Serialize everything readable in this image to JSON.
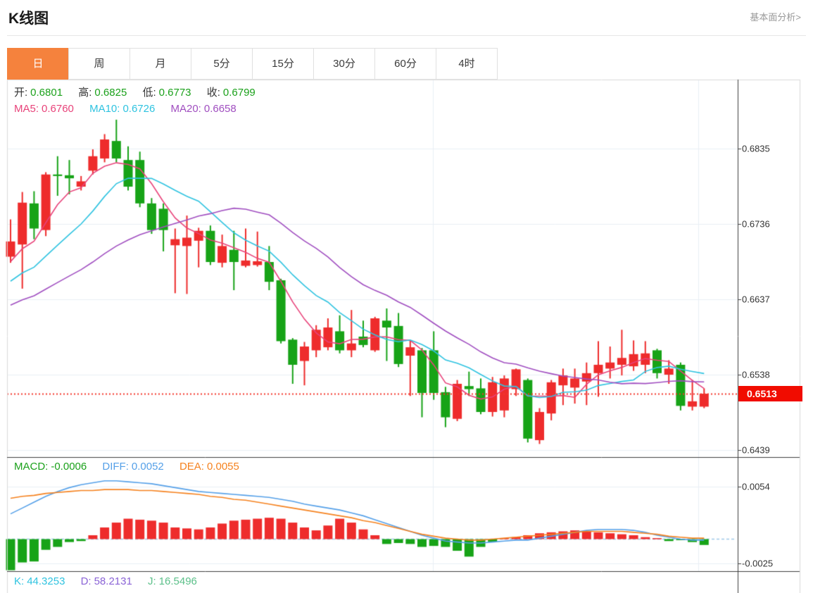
{
  "header": {
    "title": "K线图",
    "link": "基本面分析>"
  },
  "tabs": {
    "items": [
      "日",
      "周",
      "月",
      "5分",
      "15分",
      "30分",
      "60分",
      "4时"
    ],
    "active_index": 0,
    "active_color": "#f5823d"
  },
  "legend": {
    "ohlc": {
      "open_label": "开:",
      "open": "0.6801",
      "high_label": "高:",
      "high": "0.6825",
      "low_label": "低:",
      "low": "0.6773",
      "close_label": "收:",
      "close": "0.6799"
    },
    "ma": {
      "ma5_label": "MA5:",
      "ma5": "0.6760",
      "ma10_label": "MA10:",
      "ma10": "0.6726",
      "ma20_label": "MA20:",
      "ma20": "0.6658"
    },
    "macd": {
      "macd_label": "MACD:",
      "macd": "-0.0006",
      "diff_label": "DIFF:",
      "diff": "0.0052",
      "dea_label": "DEA:",
      "dea": "0.0055"
    },
    "kdj": {
      "k_label": "K:",
      "k": "44.3253",
      "d_label": "D:",
      "d": "58.2131",
      "j_label": "J:",
      "j": "16.5496"
    }
  },
  "price_axis": {
    "ticks": [
      "0.6835",
      "0.6736",
      "0.6637",
      "0.6538",
      "0.6439"
    ],
    "values": [
      0.6835,
      0.6736,
      0.6637,
      0.6538,
      0.6439
    ],
    "current_price": "0.6513",
    "current_value": 0.6513,
    "badge_color": "#f10c00"
  },
  "macd_axis": {
    "ticks": [
      "0.0054",
      "-0.0025"
    ],
    "values": [
      0.0054,
      -0.0025
    ]
  },
  "colors": {
    "up": "#ee2c2c",
    "down": "#17a317",
    "ma5": "#e8437a",
    "ma10": "#2fc3e0",
    "ma20": "#a04ec0",
    "diff": "#55a0e8",
    "dea": "#f5821f",
    "dotted_price_line": "#f4362c",
    "zero_dash": "#9fc9e8",
    "grid": "#e9eff5",
    "dark_border": "#3f3f3f",
    "light_border": "#dadada"
  },
  "chart_data": [
    {
      "type": "candlestick",
      "title": "K线图 (日)",
      "up_color": "#ee2c2c",
      "down_color": "#17a317",
      "y_ticks": [
        0.6835,
        0.6736,
        0.6637,
        0.6538,
        0.6439
      ],
      "ylim": [
        0.643,
        0.6926
      ],
      "grid": true,
      "legend_position": "top-left",
      "last_price": 0.6513,
      "ma_windows": [
        5,
        10,
        20
      ],
      "ma_seeds": {
        "5": 0.668,
        "10": 0.6655,
        "20": 0.6625
      },
      "ma_colors": {
        "ma5": "#e8437a",
        "ma10": "#2fc3e0",
        "ma20": "#a04ec0"
      },
      "candles": [
        [
          0.6693,
          0.6742,
          0.6685,
          0.6713
        ],
        [
          0.6709,
          0.6778,
          0.6651,
          0.6764
        ],
        [
          0.6763,
          0.6779,
          0.6716,
          0.673
        ],
        [
          0.6728,
          0.6804,
          0.672,
          0.6801
        ],
        [
          0.6801,
          0.6825,
          0.6773,
          0.6799
        ],
        [
          0.68,
          0.682,
          0.6775,
          0.6796
        ],
        [
          0.6785,
          0.6799,
          0.678,
          0.6792
        ],
        [
          0.6806,
          0.6834,
          0.6801,
          0.6825
        ],
        [
          0.6822,
          0.6854,
          0.6817,
          0.6847
        ],
        [
          0.6845,
          0.6873,
          0.6817,
          0.6822
        ],
        [
          0.682,
          0.6838,
          0.678,
          0.6785
        ],
        [
          0.682,
          0.6831,
          0.6758,
          0.6763
        ],
        [
          0.6763,
          0.677,
          0.6723,
          0.6728
        ],
        [
          0.6756,
          0.6763,
          0.67,
          0.6728
        ],
        [
          0.6708,
          0.673,
          0.6645,
          0.6716
        ],
        [
          0.6707,
          0.6747,
          0.6644,
          0.6718
        ],
        [
          0.6714,
          0.6731,
          0.6679,
          0.6727
        ],
        [
          0.6727,
          0.6734,
          0.6682,
          0.6686
        ],
        [
          0.6685,
          0.6722,
          0.6679,
          0.6707
        ],
        [
          0.6702,
          0.6727,
          0.6649,
          0.6686
        ],
        [
          0.6681,
          0.673,
          0.6679,
          0.6688
        ],
        [
          0.6682,
          0.6726,
          0.668,
          0.6687
        ],
        [
          0.6686,
          0.6707,
          0.6649,
          0.666
        ],
        [
          0.6662,
          0.6664,
          0.6579,
          0.6582
        ],
        [
          0.6584,
          0.6586,
          0.6526,
          0.6551
        ],
        [
          0.6556,
          0.6581,
          0.6524,
          0.6575
        ],
        [
          0.657,
          0.6603,
          0.6561,
          0.6597
        ],
        [
          0.6574,
          0.6612,
          0.657,
          0.66
        ],
        [
          0.6595,
          0.6616,
          0.6566,
          0.657
        ],
        [
          0.657,
          0.6623,
          0.6561,
          0.6579
        ],
        [
          0.6588,
          0.6609,
          0.6574,
          0.6577
        ],
        [
          0.657,
          0.6614,
          0.6568,
          0.6612
        ],
        [
          0.6609,
          0.6625,
          0.6556,
          0.66
        ],
        [
          0.6602,
          0.6619,
          0.6548,
          0.6552
        ],
        [
          0.6563,
          0.6583,
          0.651,
          0.6574
        ],
        [
          0.657,
          0.6573,
          0.6482,
          0.6514
        ],
        [
          0.657,
          0.6595,
          0.6505,
          0.6514
        ],
        [
          0.6515,
          0.6522,
          0.6469,
          0.6482
        ],
        [
          0.648,
          0.6531,
          0.6477,
          0.6526
        ],
        [
          0.6523,
          0.6542,
          0.651,
          0.6519
        ],
        [
          0.652,
          0.6533,
          0.6486,
          0.6489
        ],
        [
          0.6489,
          0.6535,
          0.6483,
          0.6528
        ],
        [
          0.6491,
          0.6537,
          0.6482,
          0.6533
        ],
        [
          0.6519,
          0.6546,
          0.651,
          0.6545
        ],
        [
          0.6531,
          0.6533,
          0.6449,
          0.6454
        ],
        [
          0.6452,
          0.6494,
          0.6447,
          0.6489
        ],
        [
          0.6487,
          0.6531,
          0.6478,
          0.6528
        ],
        [
          0.6524,
          0.6546,
          0.6498,
          0.6537
        ],
        [
          0.6521,
          0.6546,
          0.65,
          0.6533
        ],
        [
          0.6529,
          0.6554,
          0.6498,
          0.654
        ],
        [
          0.654,
          0.6582,
          0.6509,
          0.6551
        ],
        [
          0.6546,
          0.6575,
          0.6533,
          0.6554
        ],
        [
          0.6551,
          0.6597,
          0.6537,
          0.656
        ],
        [
          0.6549,
          0.6583,
          0.6543,
          0.6565
        ],
        [
          0.6551,
          0.6582,
          0.654,
          0.6566
        ],
        [
          0.657,
          0.6572,
          0.6533,
          0.654
        ],
        [
          0.6538,
          0.6557,
          0.6526,
          0.6546
        ],
        [
          0.6551,
          0.6554,
          0.6491,
          0.6497
        ],
        [
          0.6496,
          0.6531,
          0.6491,
          0.6503
        ],
        [
          0.6496,
          0.652,
          0.6494,
          0.6513
        ]
      ]
    },
    {
      "type": "macd",
      "y_ticks": [
        0.0054,
        -0.0025
      ],
      "ylim": [
        -0.0034,
        0.0061
      ],
      "colors": {
        "positive": "#ee2c2c",
        "negative": "#17a317",
        "diff": "#55a0e8",
        "dea": "#f5821f"
      },
      "histogram": [
        -0.0032,
        -0.0024,
        -0.0023,
        -0.0011,
        -0.0008,
        -0.0003,
        -0.0002,
        0.0004,
        0.0012,
        0.0017,
        0.0021,
        0.002,
        0.0019,
        0.0017,
        0.0012,
        0.0011,
        0.001,
        0.0012,
        0.0016,
        0.0019,
        0.002,
        0.0021,
        0.0022,
        0.0021,
        0.0017,
        0.0012,
        0.0009,
        0.0014,
        0.0021,
        0.0017,
        0.001,
        0.0004,
        -0.0005,
        -0.0004,
        -0.0005,
        -0.0008,
        -0.0007,
        -0.0008,
        -0.0012,
        -0.0018,
        -0.0008,
        -0.0003,
        0.0001,
        0.0002,
        0.0004,
        0.0006,
        0.0007,
        0.0008,
        0.0009,
        0.0008,
        0.0007,
        0.0006,
        0.0005,
        0.0004,
        0.0002,
        0.0001,
        -0.0002,
        -0.0001,
        -0.0003,
        -0.0006
      ],
      "diff": [
        0.0026,
        0.0032,
        0.0038,
        0.0044,
        0.0049,
        0.0053,
        0.0056,
        0.0058,
        0.006,
        0.006,
        0.0059,
        0.0058,
        0.0057,
        0.0055,
        0.0053,
        0.0051,
        0.0049,
        0.0048,
        0.0047,
        0.0046,
        0.0045,
        0.0044,
        0.0043,
        0.0041,
        0.0039,
        0.0036,
        0.0034,
        0.0032,
        0.003,
        0.0027,
        0.0024,
        0.002,
        0.0016,
        0.0012,
        0.0008,
        0.0004,
        0.0001,
        -0.0002,
        -0.0003,
        -0.0004,
        -0.0004,
        -0.0003,
        -0.0002,
        -0.0001,
        -0.0001,
        0.0001,
        0.0003,
        0.0005,
        0.0007,
        0.0009,
        0.001,
        0.001,
        0.001,
        0.0009,
        0.0007,
        0.0004,
        0.0002,
        0.0,
        -0.0001,
        -0.0001
      ],
      "dea": [
        0.0042,
        0.0044,
        0.0045,
        0.0047,
        0.0048,
        0.0049,
        0.005,
        0.005,
        0.0051,
        0.0051,
        0.0051,
        0.005,
        0.005,
        0.0049,
        0.0048,
        0.0047,
        0.0046,
        0.0044,
        0.0043,
        0.0041,
        0.004,
        0.0038,
        0.0036,
        0.0034,
        0.0032,
        0.003,
        0.0028,
        0.0026,
        0.0024,
        0.0022,
        0.0019,
        0.0017,
        0.0014,
        0.0011,
        0.0008,
        0.0005,
        0.0003,
        0.0001,
        0.0,
        -0.0001,
        -0.0001,
        0.0,
        0.0001,
        0.0002,
        0.0003,
        0.0004,
        0.0005,
        0.0006,
        0.0007,
        0.0008,
        0.0008,
        0.0008,
        0.0008,
        0.0007,
        0.0006,
        0.0005,
        0.0003,
        0.0002,
        0.0001,
        0.0001
      ]
    }
  ]
}
